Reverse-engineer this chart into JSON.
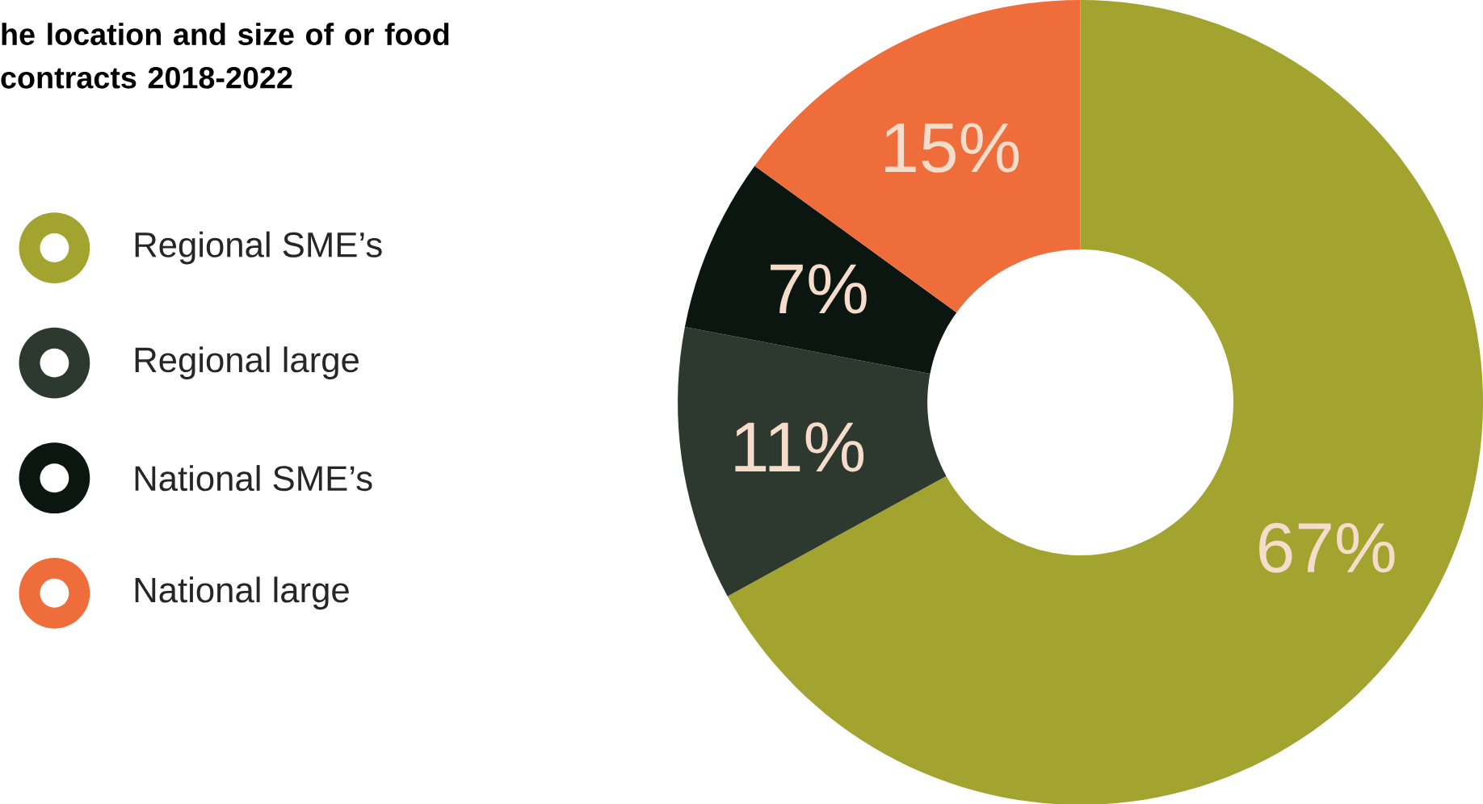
{
  "chart_data": {
    "type": "donut",
    "title": "he location and size of or food contracts 2018-2022",
    "categories": [
      "Regional SME’s",
      "Regional large",
      "National SME’s",
      "National large"
    ],
    "values": [
      67,
      11,
      7,
      15
    ],
    "colors": [
      "#a3a42f",
      "#2d382e",
      "#0c1611",
      "#ef6d3a"
    ],
    "value_labels": [
      "67%",
      "11%",
      "7%",
      "15%"
    ],
    "legend": "left"
  }
}
